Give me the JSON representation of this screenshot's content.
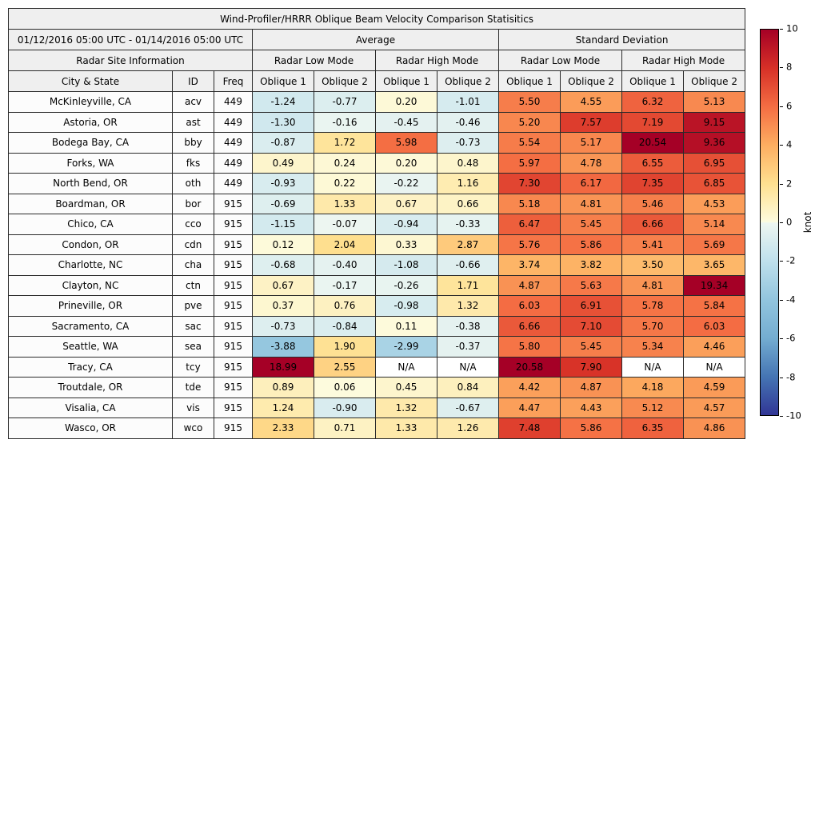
{
  "chart_data": {
    "type": "heatmap",
    "title": "Wind-Profiler/HRRR Oblique Beam Velocity Comparison Statisitics",
    "date_range": "01/12/2016 05:00 UTC - 01/14/2016 05:00 UTC",
    "group_headers": {
      "site_info": "Radar Site Information",
      "average": "Average",
      "std_dev": "Standard Deviation",
      "low_mode": "Radar Low Mode",
      "high_mode": "Radar High Mode"
    },
    "column_headers": {
      "city": "City & State",
      "id": "ID",
      "freq": "Freq",
      "oblique1": "Oblique 1",
      "oblique2": "Oblique 2"
    },
    "na_text": "N/A",
    "value_range": [
      -10,
      10
    ],
    "colorbar": {
      "label": "knot",
      "min": -10,
      "max": 10,
      "ticks": [
        10,
        8,
        6,
        4,
        2,
        0,
        -2,
        -4,
        -6,
        -8,
        -10
      ]
    },
    "colormap": [
      [
        -10,
        "#313695"
      ],
      [
        -8,
        "#4575b4"
      ],
      [
        -6,
        "#74add1"
      ],
      [
        -4,
        "#92c5de"
      ],
      [
        -2,
        "#bfe0ec"
      ],
      [
        -0.05,
        "#edf6f1"
      ],
      [
        0.05,
        "#fdfbdd"
      ],
      [
        2,
        "#fee090"
      ],
      [
        4,
        "#fdae61"
      ],
      [
        6,
        "#f46d43"
      ],
      [
        8,
        "#d73027"
      ],
      [
        10,
        "#a50026"
      ]
    ],
    "rows": [
      {
        "city": "McKinleyville, CA",
        "id": "acv",
        "freq": "449",
        "values": [
          -1.24,
          -0.77,
          0.2,
          -1.01,
          5.5,
          4.55,
          6.32,
          5.13
        ]
      },
      {
        "city": "Astoria, OR",
        "id": "ast",
        "freq": "449",
        "values": [
          -1.3,
          -0.16,
          -0.45,
          -0.46,
          5.2,
          7.57,
          7.19,
          9.15
        ]
      },
      {
        "city": "Bodega Bay, CA",
        "id": "bby",
        "freq": "449",
        "values": [
          -0.87,
          1.72,
          5.98,
          -0.73,
          5.54,
          5.17,
          20.54,
          9.36
        ]
      },
      {
        "city": "Forks, WA",
        "id": "fks",
        "freq": "449",
        "values": [
          0.49,
          0.24,
          0.2,
          0.48,
          5.97,
          4.78,
          6.55,
          6.95
        ]
      },
      {
        "city": "North Bend, OR",
        "id": "oth",
        "freq": "449",
        "values": [
          -0.93,
          0.22,
          -0.22,
          1.16,
          7.3,
          6.17,
          7.35,
          6.85
        ]
      },
      {
        "city": "Boardman, OR",
        "id": "bor",
        "freq": "915",
        "values": [
          -0.69,
          1.33,
          0.67,
          0.66,
          5.18,
          4.81,
          5.46,
          4.53
        ]
      },
      {
        "city": "Chico, CA",
        "id": "cco",
        "freq": "915",
        "values": [
          -1.15,
          -0.07,
          -0.94,
          -0.33,
          6.47,
          5.45,
          6.66,
          5.14
        ]
      },
      {
        "city": "Condon, OR",
        "id": "cdn",
        "freq": "915",
        "values": [
          0.12,
          2.04,
          0.33,
          2.87,
          5.76,
          5.86,
          5.41,
          5.69
        ]
      },
      {
        "city": "Charlotte, NC",
        "id": "cha",
        "freq": "915",
        "values": [
          -0.68,
          -0.4,
          -1.08,
          -0.66,
          3.74,
          3.82,
          3.5,
          3.65
        ]
      },
      {
        "city": "Clayton, NC",
        "id": "ctn",
        "freq": "915",
        "values": [
          0.67,
          -0.17,
          -0.26,
          1.71,
          4.87,
          5.63,
          4.81,
          19.34
        ]
      },
      {
        "city": "Prineville, OR",
        "id": "pve",
        "freq": "915",
        "values": [
          0.37,
          0.76,
          -0.98,
          1.32,
          6.03,
          6.91,
          5.78,
          5.84
        ]
      },
      {
        "city": "Sacramento, CA",
        "id": "sac",
        "freq": "915",
        "values": [
          -0.73,
          -0.84,
          0.11,
          -0.38,
          6.66,
          7.1,
          5.7,
          6.03
        ]
      },
      {
        "city": "Seattle, WA",
        "id": "sea",
        "freq": "915",
        "values": [
          -3.88,
          1.9,
          -2.99,
          -0.37,
          5.8,
          5.45,
          5.34,
          4.46
        ]
      },
      {
        "city": "Tracy, CA",
        "id": "tcy",
        "freq": "915",
        "values": [
          18.99,
          2.55,
          null,
          null,
          20.58,
          7.9,
          null,
          null
        ]
      },
      {
        "city": "Troutdale, OR",
        "id": "tde",
        "freq": "915",
        "values": [
          0.89,
          0.06,
          0.45,
          0.84,
          4.42,
          4.87,
          4.18,
          4.59
        ]
      },
      {
        "city": "Visalia, CA",
        "id": "vis",
        "freq": "915",
        "values": [
          1.24,
          -0.9,
          1.32,
          -0.67,
          4.47,
          4.43,
          5.12,
          4.57
        ]
      },
      {
        "city": "Wasco, OR",
        "id": "wco",
        "freq": "915",
        "values": [
          2.33,
          0.71,
          1.33,
          1.26,
          7.48,
          5.86,
          6.35,
          4.86
        ]
      }
    ]
  }
}
